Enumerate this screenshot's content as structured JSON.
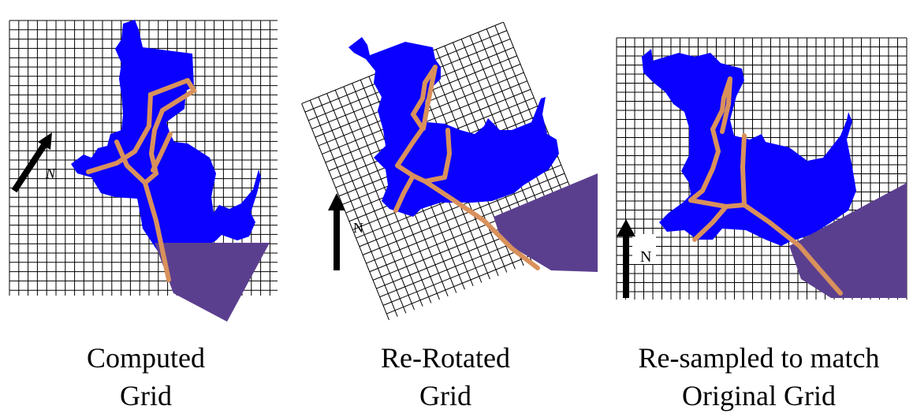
{
  "panels": [
    {
      "caption_line1": "Computed",
      "caption_line2": "Grid",
      "north_label": "N"
    },
    {
      "caption_line1": "Re-Rotated",
      "caption_line2": "Grid",
      "north_label": "N"
    },
    {
      "caption_line1": "Re-sampled to match",
      "caption_line2": "Original Grid",
      "north_label": "N"
    }
  ],
  "colors": {
    "water": "#0a00ff",
    "river": "#d9915c",
    "ocean_polygon": "#5b3f8f",
    "grid_line": "#000000"
  }
}
